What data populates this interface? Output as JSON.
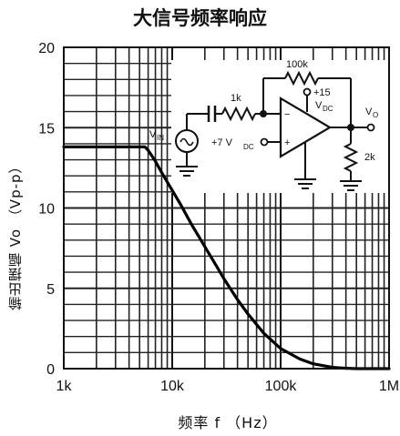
{
  "chart_data": {
    "type": "line",
    "title": "大信号频率响应",
    "xlabel": "频率 f （Hz）",
    "ylabel": "输出摆幅 Vo （Vp-p）",
    "xscale": "log",
    "xlim": [
      1000,
      1000000
    ],
    "ylim": [
      0,
      20
    ],
    "x_ticks": [
      {
        "value": 1000,
        "label": "1k"
      },
      {
        "value": 10000,
        "label": "10k"
      },
      {
        "value": 100000,
        "label": "100k"
      },
      {
        "value": 1000000,
        "label": "1M"
      }
    ],
    "y_ticks": [
      {
        "value": 0,
        "label": "0"
      },
      {
        "value": 5,
        "label": "5"
      },
      {
        "value": 10,
        "label": "10"
      },
      {
        "value": 15,
        "label": "15"
      },
      {
        "value": 20,
        "label": "20"
      }
    ],
    "grid": true,
    "series": [
      {
        "x": [
          1000,
          2000,
          3000,
          4000,
          5000,
          5600,
          6000,
          7000,
          8000,
          10000,
          12000,
          15000,
          20000,
          25000,
          30000,
          40000,
          50000,
          70000,
          100000,
          150000,
          200000,
          300000,
          400000,
          500000,
          700000,
          1000000
        ],
        "y": [
          13.8,
          13.8,
          13.8,
          13.8,
          13.8,
          13.8,
          13.6,
          12.9,
          12.2,
          11.1,
          10.2,
          9.0,
          7.6,
          6.5,
          5.6,
          4.3,
          3.4,
          2.2,
          1.25,
          0.6,
          0.3,
          0.08,
          0.02,
          0.0,
          0.0,
          0.0
        ]
      }
    ]
  },
  "circuit": {
    "labels": {
      "r_in": "1k",
      "r_fb": "100k",
      "r_load": "2k",
      "supply": "+15",
      "supply_sub": "V",
      "supply_dc": "DC",
      "bias": "+7 V",
      "bias_sub": "DC",
      "source": "V",
      "source_sub": "IN",
      "output": "V",
      "output_sub": "O",
      "minus": "−",
      "plus": "+"
    }
  }
}
